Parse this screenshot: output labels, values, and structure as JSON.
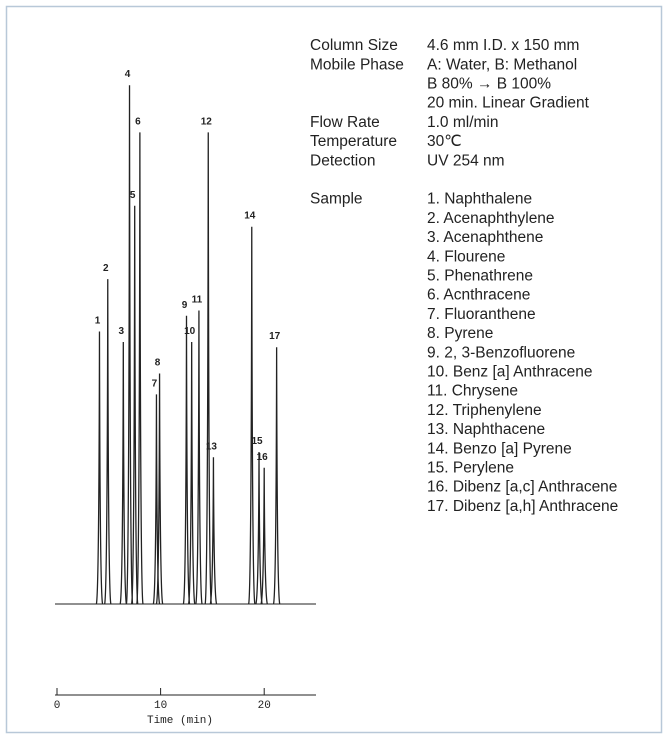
{
  "chart_data": {
    "type": "chromatogram",
    "x": [
      4.1,
      4.9,
      6.4,
      7.0,
      7.5,
      8.0,
      9.6,
      9.9,
      12.5,
      13.0,
      13.7,
      14.6,
      15.1,
      18.8,
      19.5,
      20.0,
      21.2
    ],
    "labels": [
      "1",
      "2",
      "3",
      "4",
      "5",
      "6",
      "7",
      "8",
      "9",
      "10",
      "11",
      "12",
      "13",
      "14",
      "15",
      "16",
      "17"
    ],
    "values": [
      52,
      62,
      50,
      99,
      76,
      90,
      40,
      44,
      55,
      50,
      56,
      90,
      28,
      72,
      29,
      26,
      49
    ],
    "ylim": [
      0,
      100
    ],
    "xlim": [
      0,
      25
    ],
    "xticks": [
      0,
      10,
      20
    ],
    "xlabel": "Time (min)",
    "color": "#222222"
  },
  "conditions": [
    {
      "label": "Column Size",
      "value": [
        "4.6 mm I.D. x 150 mm"
      ]
    },
    {
      "label": "Mobile Phase",
      "value": [
        "A: Water, B: Methanol",
        "B 80% → B 100%",
        "20 min. Linear Gradient"
      ]
    },
    {
      "label": "Flow Rate",
      "value": [
        "1.0 ml/min"
      ]
    },
    {
      "label": "Temperature",
      "value": [
        "30℃"
      ]
    },
    {
      "label": "Detection",
      "value": [
        "UV 254 nm"
      ]
    }
  ],
  "sample": {
    "label": "Sample",
    "items": [
      "1. Naphthalene",
      "2. Acenaphthylene",
      "3. Acenaphthene",
      "4. Flourene",
      "5. Phenathrene",
      "6. Acnthracene",
      "7. Fluoranthene",
      "8. Pyrene",
      "9. 2, 3-Benzofluorene",
      "10. Benz [a] Anthracene",
      "11. Chrysene",
      "12. Triphenylene",
      "13. Naphthacene",
      "14. Benzo [a] Pyrene",
      "15. Perylene",
      "16. Dibenz [a,c] Anthracene",
      "17. Dibenz [a,h] Anthracene"
    ]
  }
}
